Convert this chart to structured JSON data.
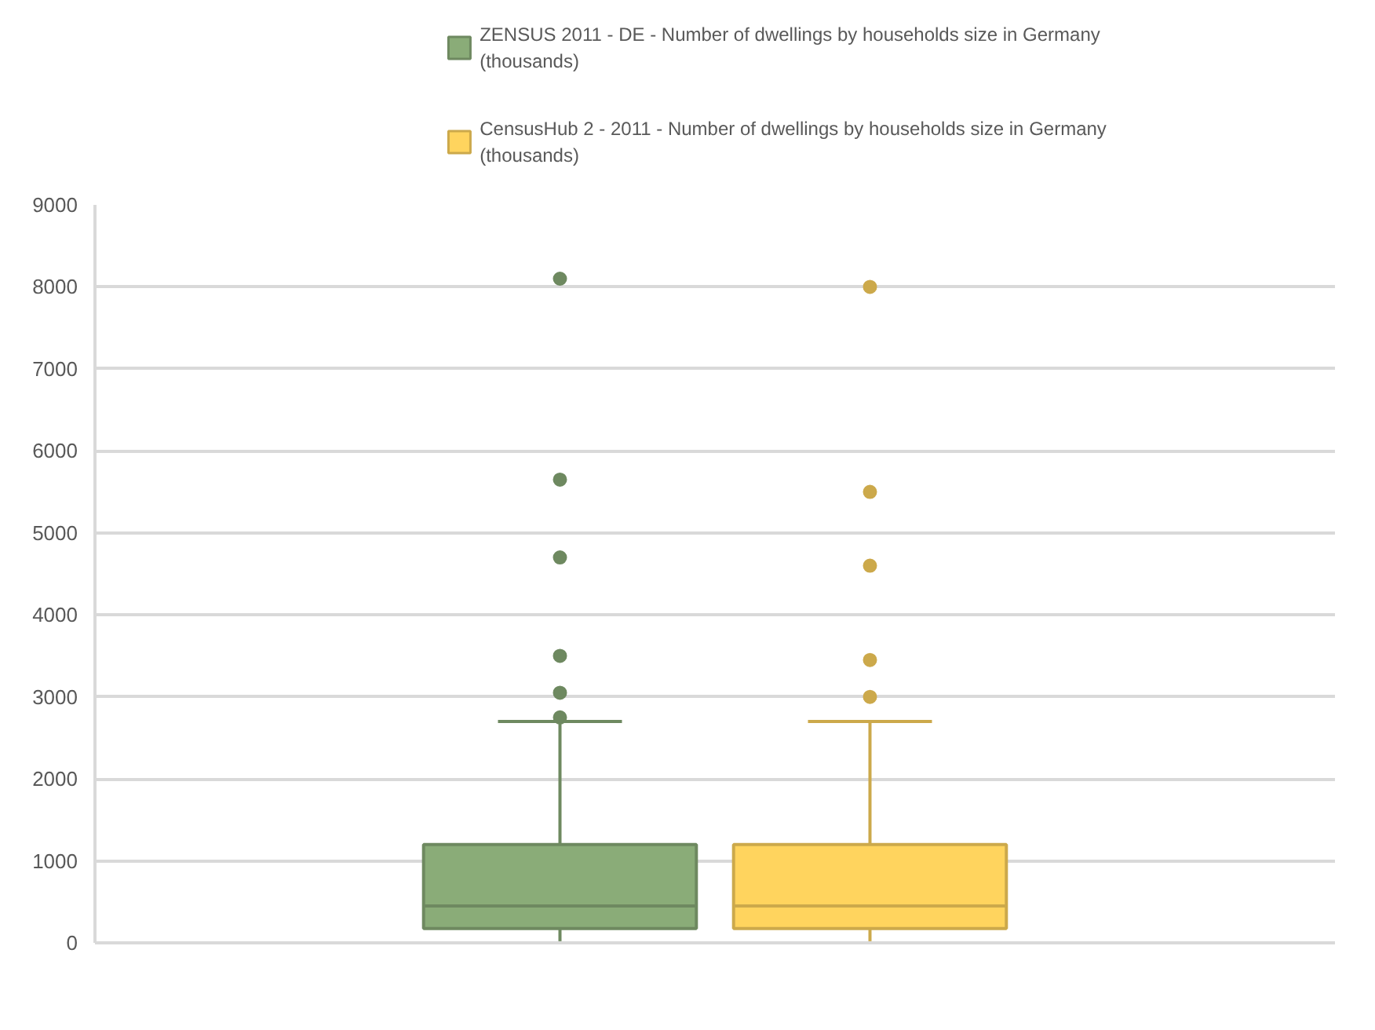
{
  "chart_data": {
    "type": "box",
    "categories": [
      null
    ],
    "series": [
      {
        "name": "ZENSUS 2011 - DE - Number of dwellings by households size in Germany (thousands)",
        "color": "#8aac78",
        "boxes": [
          {
            "low": 20,
            "q1": 175,
            "median": 450,
            "q3": 1200,
            "high": 2700,
            "outliers": [
              8100,
              5650,
              4700,
              3500,
              3050,
              2750
            ]
          }
        ]
      },
      {
        "name": "CensusHub 2 - 2011 - Number of dwellings by households size in Germany (thousands)",
        "color": "#ffd45e",
        "boxes": [
          {
            "low": 20,
            "q1": 175,
            "median": 450,
            "q3": 1200,
            "high": 2700,
            "outliers": [
              8000,
              5500,
              4600,
              3450,
              3000
            ]
          }
        ]
      }
    ],
    "ylim": [
      0,
      9000
    ],
    "yticks": [
      0,
      1000,
      2000,
      3000,
      4000,
      5000,
      6000,
      7000,
      8000,
      9000
    ],
    "grid": "y",
    "legend": "top"
  }
}
